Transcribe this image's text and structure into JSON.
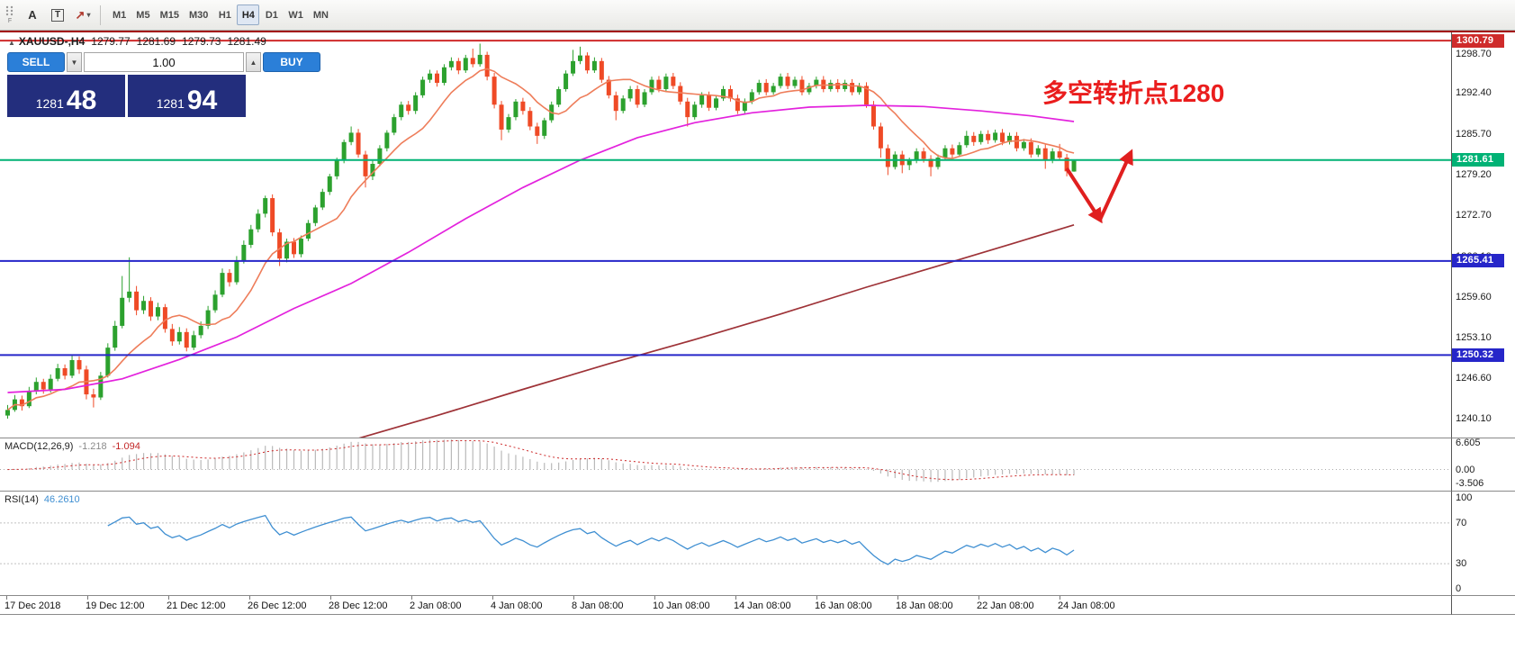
{
  "toolbar": {
    "grip_label": "F",
    "text_tool_label": "A",
    "label_tool_label": "T",
    "arrows_tool_glyph": "↗",
    "timeframes": [
      {
        "label": "M1",
        "active": false
      },
      {
        "label": "M5",
        "active": false
      },
      {
        "label": "M15",
        "active": false
      },
      {
        "label": "M30",
        "active": false
      },
      {
        "label": "H1",
        "active": false
      },
      {
        "label": "H4",
        "active": true
      },
      {
        "label": "D1",
        "active": false
      },
      {
        "label": "W1",
        "active": false
      },
      {
        "label": "MN",
        "active": false
      }
    ]
  },
  "chart": {
    "header": {
      "symbol": "XAUUSD-,H4",
      "open": "1279.77",
      "high": "1281.69",
      "low": "1279.73",
      "close": "1281.49"
    },
    "one_click": {
      "sell_label": "SELL",
      "buy_label": "BUY",
      "volume": "1.00",
      "sell_price_main": "1281",
      "sell_price_pips": "48",
      "buy_price_main": "1281",
      "buy_price_pips": "94"
    },
    "annotation": "多空转折点1280",
    "arrow_points": [
      [
        1185,
        151
      ],
      [
        1222,
        208
      ],
      [
        1256,
        134
      ]
    ],
    "price_axis_ticks": [
      "1298.70",
      "1292.40",
      "1285.70",
      "1279.20",
      "1272.70",
      "1266.10",
      "1259.60",
      "1253.10",
      "1246.60",
      "1240.10"
    ],
    "hlines": [
      {
        "price": 1300.79,
        "label": "1300.79",
        "color": "#cf2b2b"
      },
      {
        "price": 1281.61,
        "label": "1281.61",
        "color": "#00b275"
      },
      {
        "price": 1265.41,
        "label": "1265.41",
        "color": "#2626c9"
      },
      {
        "price": 1250.32,
        "label": "1250.32",
        "color": "#2626c9"
      }
    ],
    "colors": {
      "bull": "#2ca12e",
      "bear": "#ef4a26",
      "ma_fast": "#ee7d5a",
      "ma_mid": "#e322dd",
      "ma_slow": "#9e3237",
      "trade_button": "#2b7fd8",
      "price_box": "#232e7d",
      "annotation": "#ea1d1d",
      "arrow": "#e01f1f",
      "macd_hist": "#b9b9b9",
      "macd_signal": "#cc2626",
      "rsi_line": "#3f8fd2"
    }
  },
  "chart_data": {
    "type": "candlestick",
    "symbol": "XAUUSD",
    "timeframe": "H4",
    "price_range": [
      1240.1,
      1300.79
    ],
    "candles": [
      [
        1240.6,
        1242.3,
        1240.1,
        1241.5
      ],
      [
        1241.5,
        1243.9,
        1241.2,
        1243.2
      ],
      [
        1243.2,
        1243.8,
        1241.4,
        1242.1
      ],
      [
        1242.1,
        1245.2,
        1241.8,
        1244.5
      ],
      [
        1244.5,
        1246.7,
        1244.0,
        1246.0
      ],
      [
        1246.0,
        1246.5,
        1244.1,
        1244.8
      ],
      [
        1244.8,
        1247.2,
        1244.3,
        1246.5
      ],
      [
        1246.5,
        1248.9,
        1246.1,
        1248.2
      ],
      [
        1248.2,
        1248.8,
        1246.4,
        1247.0
      ],
      [
        1247.0,
        1250.2,
        1246.6,
        1249.5
      ],
      [
        1249.5,
        1250.1,
        1247.3,
        1248.0
      ],
      [
        1248.0,
        1248.6,
        1243.2,
        1244.0
      ],
      [
        1244.0,
        1244.9,
        1241.9,
        1243.5
      ],
      [
        1243.5,
        1247.6,
        1243.1,
        1247.0
      ],
      [
        1247.0,
        1252.2,
        1246.7,
        1251.5
      ],
      [
        1251.5,
        1255.8,
        1251.0,
        1255.0
      ],
      [
        1255.0,
        1263.0,
        1254.6,
        1259.5
      ],
      [
        1259.5,
        1266.0,
        1258.8,
        1260.5
      ],
      [
        1260.5,
        1261.4,
        1256.7,
        1257.5
      ],
      [
        1257.5,
        1259.8,
        1256.9,
        1259.0
      ],
      [
        1259.0,
        1259.6,
        1255.8,
        1256.5
      ],
      [
        1256.5,
        1258.7,
        1255.9,
        1258.0
      ],
      [
        1258.0,
        1258.5,
        1253.9,
        1254.5
      ],
      [
        1254.5,
        1255.3,
        1251.8,
        1252.5
      ],
      [
        1252.5,
        1254.8,
        1252.0,
        1254.0
      ],
      [
        1254.0,
        1254.6,
        1250.9,
        1251.5
      ],
      [
        1251.5,
        1254.2,
        1251.1,
        1253.5
      ],
      [
        1253.5,
        1255.7,
        1253.0,
        1255.0
      ],
      [
        1255.0,
        1258.2,
        1254.5,
        1257.5
      ],
      [
        1257.5,
        1260.7,
        1257.1,
        1260.0
      ],
      [
        1260.0,
        1264.2,
        1259.6,
        1263.5
      ],
      [
        1263.5,
        1264.1,
        1261.3,
        1262.0
      ],
      [
        1262.0,
        1266.2,
        1261.6,
        1265.5
      ],
      [
        1265.5,
        1268.7,
        1265.0,
        1268.0
      ],
      [
        1268.0,
        1271.2,
        1267.5,
        1270.5
      ],
      [
        1270.5,
        1273.7,
        1270.0,
        1273.0
      ],
      [
        1273.0,
        1275.9,
        1272.4,
        1275.5
      ],
      [
        1275.5,
        1276.1,
        1269.4,
        1270.0
      ],
      [
        1270.0,
        1270.6,
        1264.6,
        1265.8
      ],
      [
        1265.8,
        1269.0,
        1265.2,
        1268.5
      ],
      [
        1268.5,
        1269.1,
        1265.9,
        1266.5
      ],
      [
        1266.5,
        1269.5,
        1266.0,
        1269.0
      ],
      [
        1269.0,
        1272.0,
        1268.6,
        1271.5
      ],
      [
        1271.5,
        1274.4,
        1271.0,
        1274.0
      ],
      [
        1274.0,
        1277.0,
        1273.6,
        1276.5
      ],
      [
        1276.5,
        1279.4,
        1276.0,
        1279.0
      ],
      [
        1279.0,
        1282.0,
        1278.5,
        1281.5
      ],
      [
        1281.5,
        1284.9,
        1281.1,
        1284.5
      ],
      [
        1284.5,
        1287.0,
        1284.0,
        1286.0
      ],
      [
        1286.0,
        1286.6,
        1282.0,
        1282.5
      ],
      [
        1282.5,
        1283.1,
        1277.2,
        1279.0
      ],
      [
        1279.0,
        1281.5,
        1278.4,
        1281.0
      ],
      [
        1281.0,
        1284.0,
        1280.6,
        1283.5
      ],
      [
        1283.5,
        1286.4,
        1283.0,
        1286.0
      ],
      [
        1286.0,
        1289.0,
        1285.6,
        1288.5
      ],
      [
        1288.5,
        1291.0,
        1288.0,
        1290.5
      ],
      [
        1290.5,
        1291.1,
        1288.9,
        1289.5
      ],
      [
        1289.5,
        1292.5,
        1289.0,
        1292.0
      ],
      [
        1292.0,
        1295.0,
        1291.6,
        1294.5
      ],
      [
        1294.5,
        1296.1,
        1294.0,
        1295.5
      ],
      [
        1295.5,
        1296.0,
        1293.4,
        1294.0
      ],
      [
        1294.0,
        1297.0,
        1293.6,
        1296.5
      ],
      [
        1296.5,
        1298.1,
        1296.0,
        1297.5
      ],
      [
        1297.5,
        1298.0,
        1295.4,
        1296.0
      ],
      [
        1296.0,
        1298.5,
        1295.6,
        1298.0
      ],
      [
        1298.0,
        1299.5,
        1296.5,
        1297.0
      ],
      [
        1297.0,
        1300.3,
        1296.6,
        1298.5
      ],
      [
        1298.5,
        1299.0,
        1294.4,
        1295.0
      ],
      [
        1295.0,
        1295.6,
        1289.9,
        1290.5
      ],
      [
        1290.5,
        1291.1,
        1284.8,
        1286.5
      ],
      [
        1286.5,
        1289.0,
        1286.0,
        1288.5
      ],
      [
        1288.5,
        1291.4,
        1288.0,
        1291.0
      ],
      [
        1291.0,
        1291.6,
        1288.9,
        1289.5
      ],
      [
        1289.5,
        1290.1,
        1286.4,
        1287.0
      ],
      [
        1287.0,
        1287.6,
        1284.2,
        1285.5
      ],
      [
        1285.5,
        1288.4,
        1285.0,
        1288.0
      ],
      [
        1288.0,
        1291.0,
        1287.6,
        1290.5
      ],
      [
        1290.5,
        1293.4,
        1290.1,
        1293.0
      ],
      [
        1293.0,
        1296.0,
        1292.6,
        1295.5
      ],
      [
        1295.5,
        1299.3,
        1295.1,
        1297.5
      ],
      [
        1297.5,
        1299.8,
        1297.0,
        1298.4
      ],
      [
        1298.4,
        1298.9,
        1295.5,
        1296.0
      ],
      [
        1296.0,
        1298.1,
        1295.6,
        1297.5
      ],
      [
        1297.5,
        1298.0,
        1294.0,
        1294.5
      ],
      [
        1294.5,
        1295.1,
        1291.5,
        1292.0
      ],
      [
        1292.0,
        1292.6,
        1288.0,
        1289.5
      ],
      [
        1289.5,
        1292.0,
        1289.1,
        1291.5
      ],
      [
        1291.5,
        1293.5,
        1291.0,
        1293.0
      ],
      [
        1293.0,
        1293.6,
        1290.0,
        1290.5
      ],
      [
        1290.5,
        1293.0,
        1290.1,
        1292.5
      ],
      [
        1292.5,
        1295.0,
        1292.1,
        1294.5
      ],
      [
        1294.5,
        1295.1,
        1292.5,
        1293.0
      ],
      [
        1293.0,
        1295.5,
        1292.6,
        1295.0
      ],
      [
        1295.0,
        1295.6,
        1293.0,
        1293.5
      ],
      [
        1293.5,
        1294.1,
        1290.5,
        1291.0
      ],
      [
        1291.0,
        1291.6,
        1287.0,
        1288.5
      ],
      [
        1288.5,
        1291.0,
        1288.1,
        1290.5
      ],
      [
        1290.5,
        1292.5,
        1290.0,
        1292.0
      ],
      [
        1292.0,
        1292.6,
        1289.5,
        1290.0
      ],
      [
        1290.0,
        1292.0,
        1289.6,
        1291.5
      ],
      [
        1291.5,
        1293.5,
        1291.1,
        1293.0
      ],
      [
        1293.0,
        1293.6,
        1291.0,
        1291.5
      ],
      [
        1291.5,
        1292.1,
        1289.0,
        1289.5
      ],
      [
        1289.5,
        1291.5,
        1289.1,
        1291.0
      ],
      [
        1291.0,
        1293.0,
        1290.6,
        1292.5
      ],
      [
        1292.5,
        1294.5,
        1292.1,
        1294.0
      ],
      [
        1294.0,
        1294.6,
        1292.0,
        1292.5
      ],
      [
        1292.5,
        1294.0,
        1292.1,
        1293.5
      ],
      [
        1293.5,
        1295.5,
        1293.1,
        1295.0
      ],
      [
        1295.0,
        1295.6,
        1293.0,
        1293.5
      ],
      [
        1293.5,
        1295.0,
        1293.1,
        1294.5
      ],
      [
        1294.5,
        1295.1,
        1292.0,
        1292.5
      ],
      [
        1292.5,
        1294.0,
        1292.1,
        1293.5
      ],
      [
        1293.5,
        1295.0,
        1293.1,
        1294.5
      ],
      [
        1294.5,
        1295.1,
        1292.5,
        1293.0
      ],
      [
        1293.0,
        1294.5,
        1292.6,
        1294.0
      ],
      [
        1294.0,
        1294.6,
        1292.5,
        1293.0
      ],
      [
        1293.0,
        1294.5,
        1292.6,
        1294.0
      ],
      [
        1294.0,
        1294.6,
        1292.0,
        1292.5
      ],
      [
        1292.5,
        1294.0,
        1292.1,
        1293.5
      ],
      [
        1293.5,
        1294.1,
        1290.0,
        1290.5
      ],
      [
        1290.5,
        1291.1,
        1286.5,
        1287.0
      ],
      [
        1287.0,
        1287.6,
        1282.0,
        1283.5
      ],
      [
        1283.5,
        1284.1,
        1279.2,
        1280.5
      ],
      [
        1280.5,
        1283.0,
        1280.1,
        1282.5
      ],
      [
        1282.5,
        1283.1,
        1279.5,
        1280.8
      ],
      [
        1280.8,
        1282.0,
        1280.0,
        1281.5
      ],
      [
        1281.5,
        1283.5,
        1281.1,
        1283.0
      ],
      [
        1283.0,
        1283.6,
        1281.2,
        1281.8
      ],
      [
        1281.8,
        1282.4,
        1279.0,
        1280.5
      ],
      [
        1280.5,
        1282.5,
        1280.1,
        1282.0
      ],
      [
        1282.0,
        1284.0,
        1281.6,
        1283.5
      ],
      [
        1283.5,
        1284.1,
        1281.9,
        1282.5
      ],
      [
        1282.5,
        1284.5,
        1282.1,
        1284.0
      ],
      [
        1284.0,
        1286.3,
        1283.6,
        1285.5
      ],
      [
        1285.5,
        1286.1,
        1283.9,
        1284.5
      ],
      [
        1284.5,
        1286.3,
        1284.1,
        1285.8
      ],
      [
        1285.8,
        1286.4,
        1284.2,
        1284.8
      ],
      [
        1284.8,
        1286.5,
        1284.4,
        1286.0
      ],
      [
        1286.0,
        1286.6,
        1284.0,
        1284.5
      ],
      [
        1284.5,
        1286.0,
        1284.1,
        1285.5
      ],
      [
        1285.5,
        1286.1,
        1283.0,
        1283.5
      ],
      [
        1283.5,
        1285.0,
        1283.1,
        1284.5
      ],
      [
        1284.5,
        1285.1,
        1282.0,
        1282.5
      ],
      [
        1282.5,
        1284.0,
        1282.1,
        1283.5
      ],
      [
        1283.5,
        1284.1,
        1280.2,
        1281.5
      ],
      [
        1281.5,
        1283.5,
        1281.1,
        1283.0
      ],
      [
        1283.0,
        1284.2,
        1281.6,
        1282.0
      ],
      [
        1282.0,
        1282.6,
        1279.0,
        1279.8
      ],
      [
        1279.77,
        1281.69,
        1279.73,
        1281.49
      ]
    ],
    "ma_fast_period": 10,
    "ma_mid_anchors": [
      [
        0,
        1244.3
      ],
      [
        8,
        1244.8
      ],
      [
        16,
        1246.5
      ],
      [
        24,
        1249.6
      ],
      [
        32,
        1253.2
      ],
      [
        40,
        1257.8
      ],
      [
        48,
        1261.8
      ],
      [
        56,
        1266.8
      ],
      [
        64,
        1272.2
      ],
      [
        72,
        1277.2
      ],
      [
        80,
        1281.6
      ],
      [
        88,
        1285.2
      ],
      [
        96,
        1287.6
      ],
      [
        104,
        1289.2
      ],
      [
        112,
        1290.1
      ],
      [
        120,
        1290.4
      ],
      [
        128,
        1290.2
      ],
      [
        136,
        1289.5
      ],
      [
        143,
        1288.7
      ],
      [
        149,
        1287.8
      ]
    ],
    "ma_slow_anchors": [
      [
        48,
        1236.6
      ],
      [
        60,
        1240.6
      ],
      [
        72,
        1244.8
      ],
      [
        84,
        1248.9
      ],
      [
        96,
        1252.8
      ],
      [
        108,
        1256.9
      ],
      [
        120,
        1261.2
      ],
      [
        132,
        1265.3
      ],
      [
        141,
        1268.4
      ],
      [
        149,
        1271.2
      ]
    ]
  },
  "macd": {
    "label": "MACD(12,26,9)",
    "value_main": "-1.218",
    "value_signal": "-1.094",
    "axis": [
      "6.605",
      "0.00",
      "-3.506"
    ],
    "range": [
      -5.0,
      7.7
    ],
    "params": {
      "fast": 12,
      "slow": 26,
      "signal": 9
    }
  },
  "rsi": {
    "label": "RSI(14)",
    "value": "46.2610",
    "axis": [
      "100",
      "70",
      "30",
      "0"
    ],
    "levels": [
      70,
      30
    ],
    "period": 14
  },
  "time_axis": {
    "labels": [
      "17 Dec 2018",
      "19 Dec 12:00",
      "21 Dec 12:00",
      "26 Dec 12:00",
      "28 Dec 12:00",
      "2 Jan 08:00",
      "4 Jan 08:00",
      "8 Jan 08:00",
      "10 Jan 08:00",
      "14 Jan 08:00",
      "16 Jan 08:00",
      "18 Jan 08:00",
      "22 Jan 08:00",
      "24 Jan 08:00"
    ]
  }
}
